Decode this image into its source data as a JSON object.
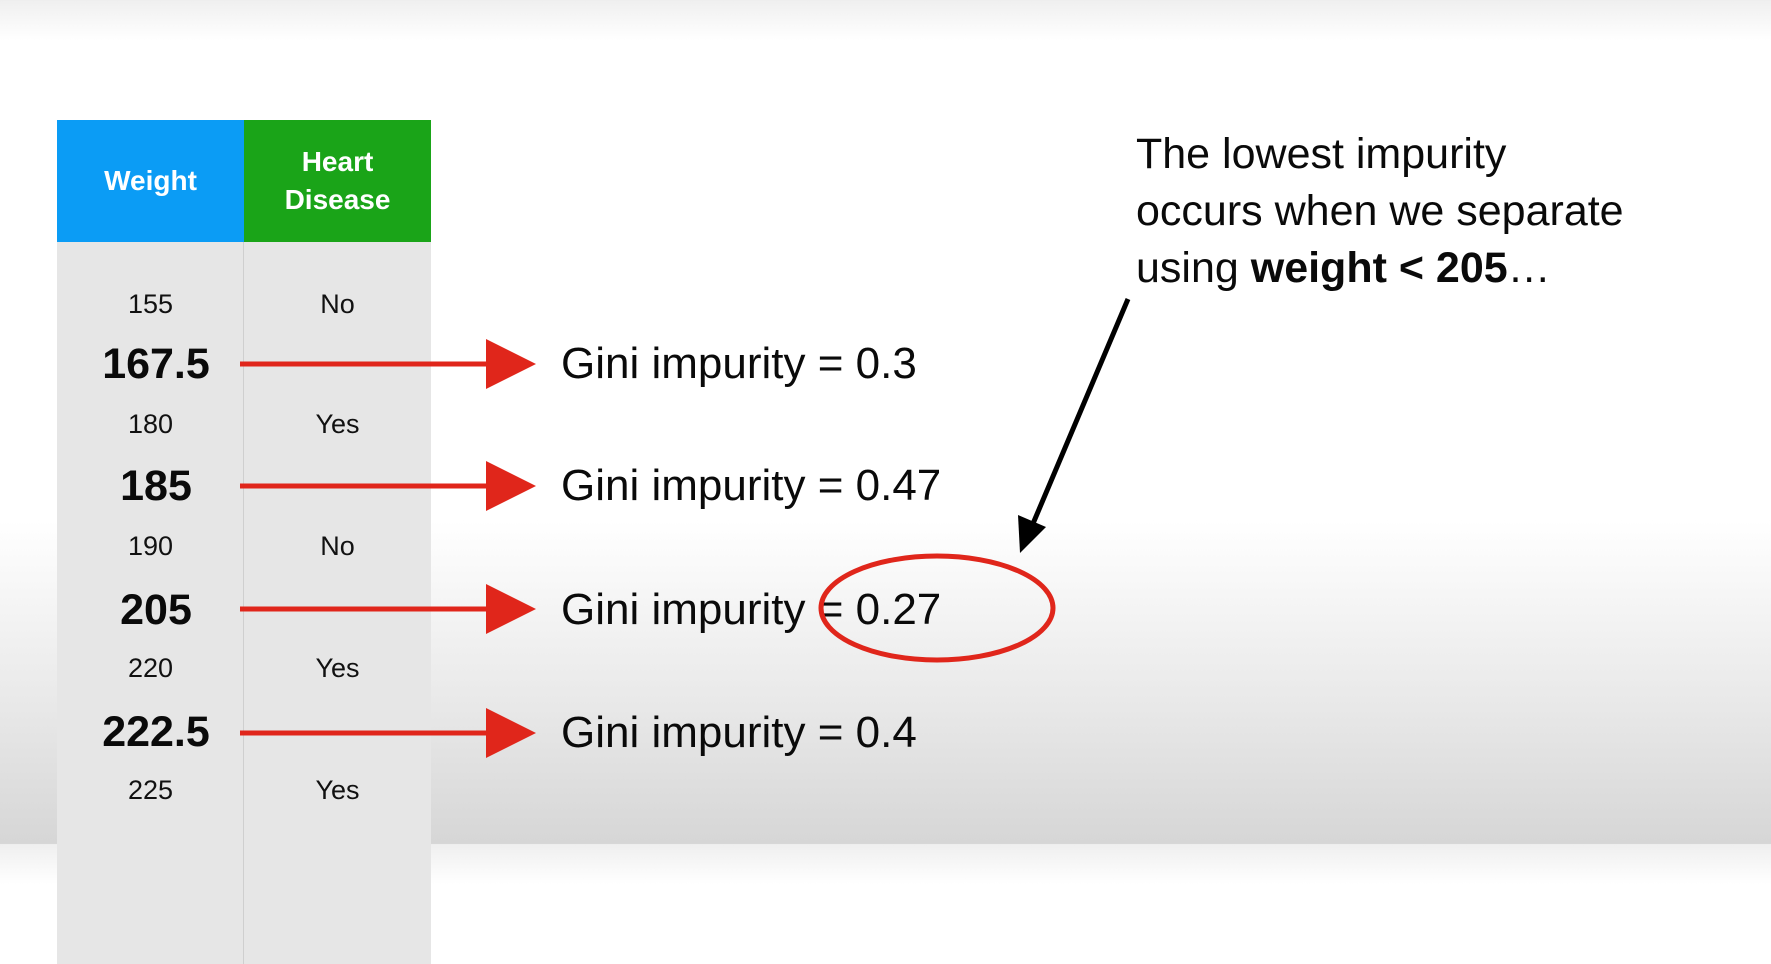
{
  "table": {
    "headers": {
      "weight": "Weight",
      "heart_disease": "Heart Disease"
    },
    "rows": [
      {
        "weight": "155",
        "heart_disease": "No"
      },
      {
        "weight": "180",
        "heart_disease": "Yes"
      },
      {
        "weight": "190",
        "heart_disease": "No"
      },
      {
        "weight": "220",
        "heart_disease": "Yes"
      },
      {
        "weight": "225",
        "heart_disease": "Yes"
      }
    ],
    "header_colors": {
      "weight": "#0b9cf5",
      "heart_disease": "#1aa418"
    }
  },
  "thresholds": [
    {
      "value": "167.5",
      "gini": "Gini impurity = 0.3"
    },
    {
      "value": "185",
      "gini": "Gini impurity = 0.47"
    },
    {
      "value": "205",
      "gini": "Gini impurity = 0.27"
    },
    {
      "value": "222.5",
      "gini": "Gini impurity = 0.4"
    }
  ],
  "note": {
    "line1": "The lowest impurity",
    "line2": "occurs when we separate",
    "line3_prefix": "using ",
    "line3_bold": "weight < 205",
    "line3_suffix": "…"
  },
  "colors": {
    "arrow": "#e0261b",
    "highlight_circle": "#e0261b",
    "pointer_arrow": "#000000"
  }
}
